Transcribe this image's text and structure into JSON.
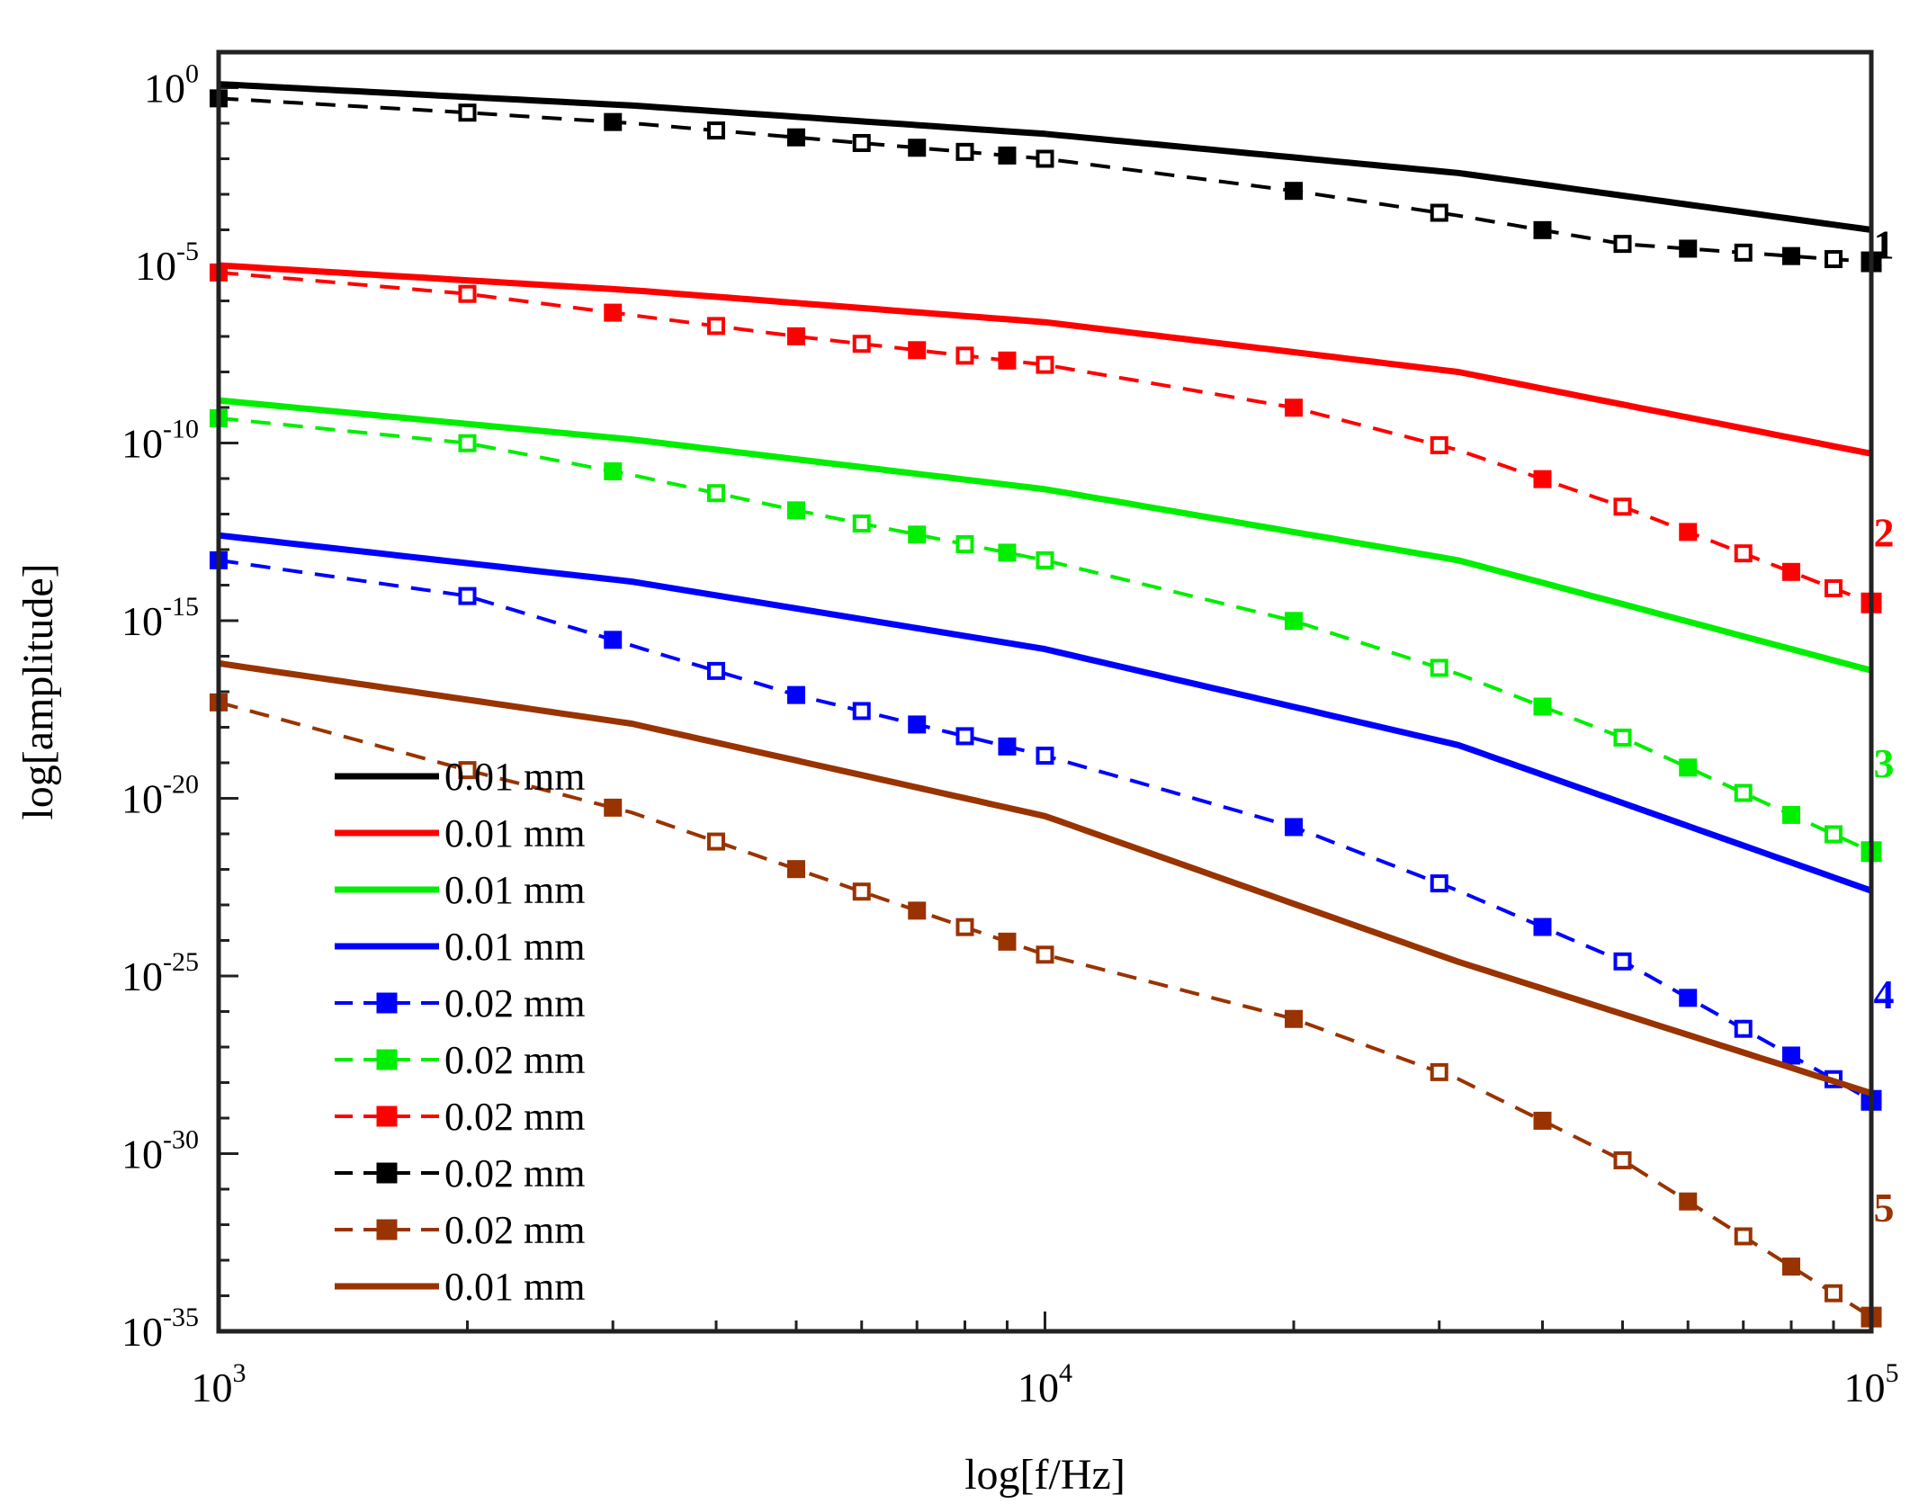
{
  "chart_data": {
    "type": "line",
    "title": "",
    "xlabel": "log[f/Hz]",
    "ylabel": "log[amplitude]",
    "xscale": "log",
    "yscale": "log",
    "xlim_exp": [
      3,
      5
    ],
    "ylim_exp": [
      -35,
      1
    ],
    "x_ticks": [
      {
        "base": "10",
        "exp": "3",
        "value_exp": 3
      },
      {
        "base": "10",
        "exp": "4",
        "value_exp": 4
      },
      {
        "base": "10",
        "exp": "5",
        "value_exp": 5
      }
    ],
    "y_ticks": [
      {
        "base": "10",
        "exp": "0",
        "value_exp": 0
      },
      {
        "base": "10",
        "exp": "-5",
        "value_exp": -5
      },
      {
        "base": "10",
        "exp": "-10",
        "value_exp": -10
      },
      {
        "base": "10",
        "exp": "-15",
        "value_exp": -15
      },
      {
        "base": "10",
        "exp": "-20",
        "value_exp": -20
      },
      {
        "base": "10",
        "exp": "-25",
        "value_exp": -25
      },
      {
        "base": "10",
        "exp": "-30",
        "value_exp": -30
      },
      {
        "base": "10",
        "exp": "-35",
        "value_exp": -35
      }
    ],
    "series": [
      {
        "name": "solid-black",
        "legend": "0.01 mm",
        "color": "#000000",
        "style": "solid",
        "log10_f": [
          3,
          3.5,
          4,
          4.5,
          5
        ],
        "log10_amp": [
          0.1,
          -0.5,
          -1.3,
          -2.4,
          -4.0
        ]
      },
      {
        "name": "solid-red",
        "legend": "0.01 mm",
        "color": "#ff0000",
        "style": "solid",
        "log10_f": [
          3,
          3.5,
          4,
          4.5,
          5
        ],
        "log10_amp": [
          -5.0,
          -5.7,
          -6.6,
          -8.0,
          -10.3
        ]
      },
      {
        "name": "solid-green",
        "legend": "0.01 mm",
        "color": "#00ee00",
        "style": "solid",
        "log10_f": [
          3,
          3.5,
          4,
          4.5,
          5
        ],
        "log10_amp": [
          -8.8,
          -9.9,
          -11.3,
          -13.3,
          -16.4
        ]
      },
      {
        "name": "solid-blue",
        "legend": "0.01 mm",
        "color": "#0000ff",
        "style": "solid",
        "log10_f": [
          3,
          3.5,
          4,
          4.5,
          5
        ],
        "log10_amp": [
          -12.6,
          -13.9,
          -15.8,
          -18.5,
          -22.6
        ]
      },
      {
        "name": "solid-brown",
        "legend": "0.01 mm",
        "color": "#993300",
        "style": "solid",
        "log10_f": [
          3,
          3.5,
          4,
          4.5,
          5
        ],
        "log10_amp": [
          -16.2,
          -17.9,
          -20.5,
          -24.6,
          -28.3
        ]
      },
      {
        "name": "dashed-black",
        "legend": "0.02 mm",
        "color": "#000000",
        "style": "dashed",
        "log10_f": [
          3,
          3.3,
          3.5,
          3.7,
          4,
          4.3,
          4.5,
          4.7,
          5
        ],
        "log10_amp": [
          -0.3,
          -0.7,
          -1.0,
          -1.4,
          -2.0,
          -2.9,
          -3.6,
          -4.4,
          -4.9
        ]
      },
      {
        "name": "dashed-red",
        "legend": "0.02 mm",
        "color": "#ff0000",
        "style": "dashed",
        "log10_f": [
          3,
          3.3,
          3.5,
          3.7,
          4,
          4.3,
          4.5,
          4.7,
          5
        ],
        "log10_amp": [
          -5.2,
          -5.8,
          -6.4,
          -7.0,
          -7.8,
          -9.0,
          -10.2,
          -11.8,
          -14.5
        ]
      },
      {
        "name": "dashed-green",
        "legend": "0.02 mm",
        "color": "#00ee00",
        "style": "dashed",
        "log10_f": [
          3,
          3.3,
          3.5,
          3.7,
          4,
          4.3,
          4.5,
          4.7,
          5
        ],
        "log10_amp": [
          -9.3,
          -10.0,
          -10.9,
          -11.9,
          -13.3,
          -15.0,
          -16.5,
          -18.3,
          -21.5
        ]
      },
      {
        "name": "dashed-blue",
        "legend": "0.02 mm",
        "color": "#0000ff",
        "style": "dashed",
        "log10_f": [
          3,
          3.3,
          3.5,
          3.7,
          4,
          4.3,
          4.5,
          4.7,
          5
        ],
        "log10_amp": [
          -13.3,
          -14.3,
          -15.7,
          -17.1,
          -18.8,
          -20.8,
          -22.6,
          -24.6,
          -28.5
        ]
      },
      {
        "name": "dashed-brown",
        "legend": "0.02 mm",
        "color": "#993300",
        "style": "dashed",
        "log10_f": [
          3,
          3.3,
          3.5,
          3.7,
          4,
          4.3,
          4.5,
          4.7,
          5
        ],
        "log10_amp": [
          -17.3,
          -19.2,
          -20.4,
          -22.0,
          -24.4,
          -26.2,
          -27.9,
          -30.2,
          -34.6
        ]
      }
    ],
    "legend_position": "bottom-left",
    "legend_order": [
      "solid-black",
      "solid-red",
      "solid-green",
      "solid-blue",
      "dashed-blue",
      "dashed-green",
      "dashed-red",
      "dashed-black",
      "dashed-brown",
      "solid-brown"
    ],
    "annotations": [
      {
        "text": "1",
        "color": "#000000",
        "log10_amp": -4.4
      },
      {
        "text": "2",
        "color": "#ff0000",
        "log10_amp": -12.5
      },
      {
        "text": "3",
        "color": "#00ee00",
        "log10_amp": -19.0
      },
      {
        "text": "4",
        "color": "#0000ff",
        "log10_amp": -25.5
      },
      {
        "text": "5",
        "color": "#993300",
        "log10_amp": -31.5
      }
    ]
  }
}
